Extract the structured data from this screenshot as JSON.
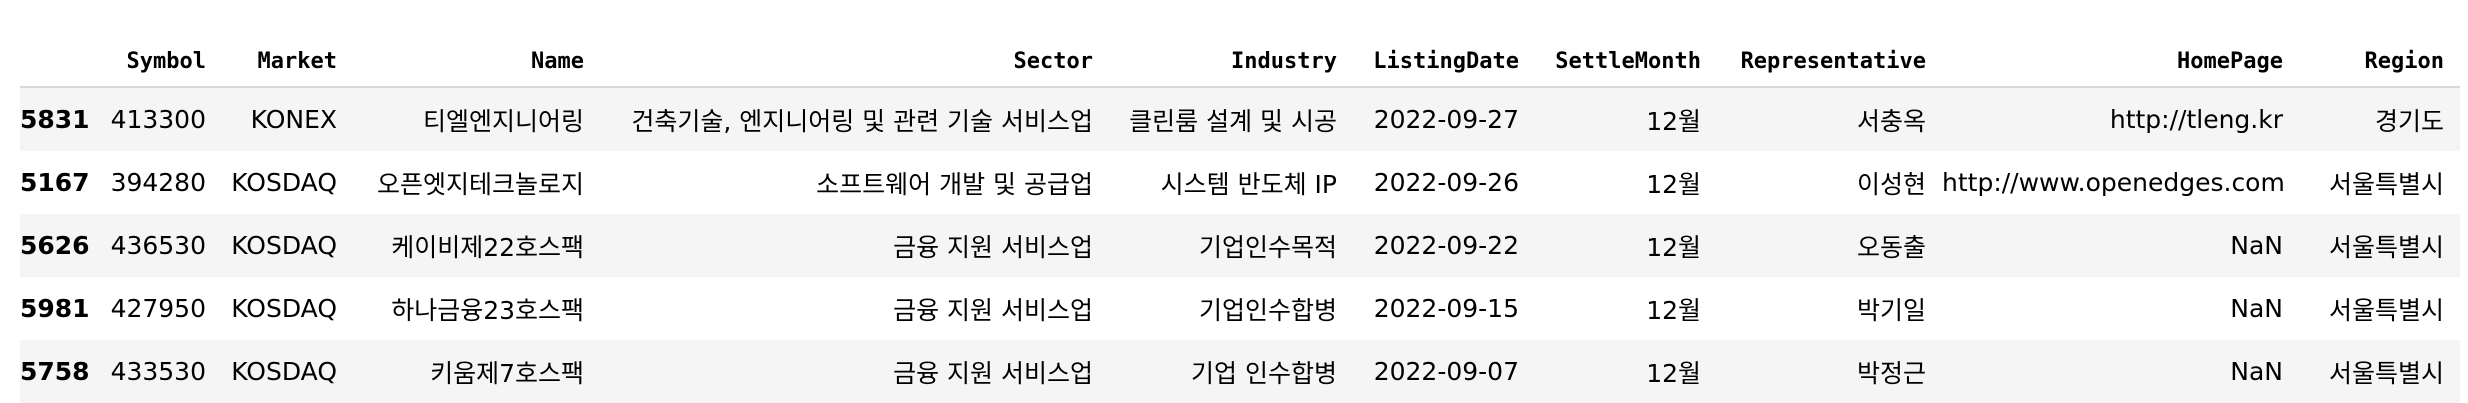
{
  "table": {
    "columns": [
      "Symbol",
      "Market",
      "Name",
      "Sector",
      "Industry",
      "ListingDate",
      "SettleMonth",
      "Representative",
      "HomePage",
      "Region"
    ],
    "rows": [
      {
        "index": "5831",
        "cells": [
          "413300",
          "KONEX",
          "티엘엔지니어링",
          "건축기술, 엔지니어링 및 관련 기술 서비스업",
          "클린룸 설계 및 시공",
          "2022-09-27",
          "12월",
          "서충옥",
          "http://tleng.kr",
          "경기도"
        ]
      },
      {
        "index": "5167",
        "cells": [
          "394280",
          "KOSDAQ",
          "오픈엣지테크놀로지",
          "소프트웨어 개발 및 공급업",
          "시스템 반도체 IP",
          "2022-09-26",
          "12월",
          "이성현",
          "http://www.openedges.com",
          "서울특별시"
        ]
      },
      {
        "index": "5626",
        "cells": [
          "436530",
          "KOSDAQ",
          "케이비제22호스팩",
          "금융 지원 서비스업",
          "기업인수목적",
          "2022-09-22",
          "12월",
          "오동출",
          "NaN",
          "서울특별시"
        ]
      },
      {
        "index": "5981",
        "cells": [
          "427950",
          "KOSDAQ",
          "하나금융23호스팩",
          "금융 지원 서비스업",
          "기업인수합병",
          "2022-09-15",
          "12월",
          "박기일",
          "NaN",
          "서울특별시"
        ]
      },
      {
        "index": "5758",
        "cells": [
          "433530",
          "KOSDAQ",
          "키움제7호스팩",
          "금융 지원 서비스업",
          "기업 인수합병",
          "2022-09-07",
          "12월",
          "박정근",
          "NaN",
          "서울특별시"
        ]
      }
    ]
  }
}
